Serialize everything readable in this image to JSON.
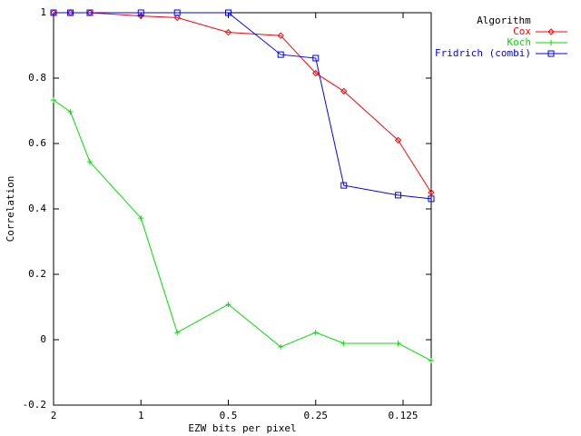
{
  "chart_data": {
    "type": "line",
    "xlabel": "EZW bits per pixel",
    "ylabel": "Correlation",
    "legend_title": "Algorithm",
    "legend": "top-right",
    "xscale": "log",
    "x": [
      2,
      1.75,
      1.5,
      1,
      0.75,
      0.5,
      0.33,
      0.25,
      0.2,
      0.13,
      0.1
    ],
    "series": [
      {
        "name": "Cox",
        "color": "#ff0000",
        "point": "diamond",
        "values": [
          1,
          1,
          1,
          0.99,
          0.985,
          0.94,
          0.93,
          0.815,
          0.76,
          0.61,
          0.45
        ]
      },
      {
        "name": "Koch",
        "color": "#00dd00",
        "point": "plus",
        "values": [
          0.733,
          0.697,
          0.544,
          0.372,
          0.022,
          0.108,
          -0.022,
          0.022,
          -0.011,
          -0.011,
          -0.064
        ]
      },
      {
        "name": "Fridrich (combi)",
        "color": "#0000ff",
        "point": "square",
        "values": [
          1,
          1,
          1,
          1,
          1,
          1,
          0.872,
          0.861,
          0.472,
          0.442,
          0.431
        ]
      }
    ],
    "xlim": [
      2,
      0.1
    ],
    "xticks": [
      2,
      1,
      0.5,
      0.25,
      0.125
    ],
    "ylim": [
      -0.2,
      1
    ],
    "yticks": [
      -0.2,
      0,
      0.2,
      0.4,
      0.6,
      0.8,
      1
    ]
  }
}
